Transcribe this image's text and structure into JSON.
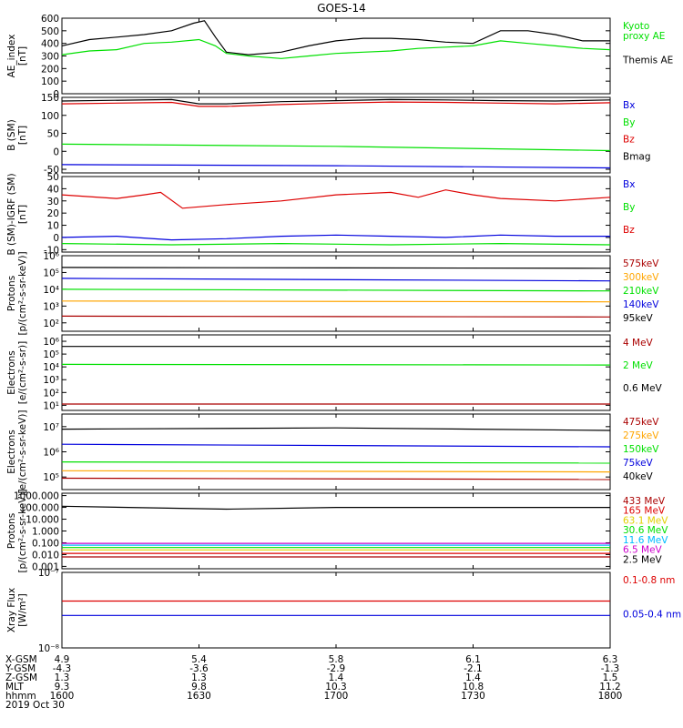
{
  "title": "GOES-14",
  "colors": {
    "black": "#000000",
    "green": "#00e000",
    "blue": "#0000dd",
    "red": "#dd0000",
    "orange": "#ffa500",
    "yellow": "#e0d000",
    "cyan": "#00bbff",
    "purple": "#cc00cc",
    "darkred": "#aa0000"
  },
  "chart_data": [
    {
      "id": "ae",
      "type": "line",
      "ylabel": "AE_index\n[nT]",
      "scale": "linear",
      "ylim": [
        0,
        600
      ],
      "yticks": [
        "0",
        "100",
        "200",
        "300",
        "400",
        "500",
        "600"
      ],
      "ytick_values": [
        0,
        100,
        200,
        300,
        400,
        500,
        600
      ],
      "series": [
        {
          "name": "Kyoto\nproxy AE",
          "color": "#00e000",
          "x": [
            0,
            5,
            10,
            15,
            20,
            25,
            28,
            30,
            34,
            40,
            45,
            50,
            55,
            60,
            65,
            70,
            75,
            80,
            85,
            90,
            95,
            100
          ],
          "y": [
            310,
            340,
            350,
            400,
            410,
            430,
            380,
            320,
            300,
            280,
            300,
            320,
            330,
            340,
            360,
            370,
            380,
            420,
            400,
            380,
            360,
            350
          ]
        },
        {
          "name": "Themis AE",
          "color": "#000000",
          "x": [
            0,
            5,
            10,
            15,
            20,
            24,
            26,
            28,
            30,
            34,
            40,
            45,
            50,
            55,
            60,
            65,
            70,
            75,
            80,
            85,
            90,
            95,
            100
          ],
          "y": [
            380,
            430,
            450,
            470,
            500,
            560,
            580,
            450,
            330,
            310,
            330,
            380,
            420,
            440,
            440,
            430,
            410,
            400,
            500,
            500,
            470,
            420,
            420
          ]
        }
      ]
    },
    {
      "id": "b",
      "type": "line",
      "ylabel": "B (SM)\n[nT]",
      "scale": "linear",
      "ylim": [
        -60,
        150
      ],
      "yticks": [
        "-50",
        "0",
        "50",
        "100",
        "150"
      ],
      "ytick_values": [
        -50,
        0,
        50,
        100,
        150
      ],
      "series": [
        {
          "name": "Bx",
          "color": "#0000dd",
          "x": [
            0,
            50,
            100
          ],
          "y": [
            -37,
            -40,
            -46
          ]
        },
        {
          "name": "By",
          "color": "#00e000",
          "x": [
            0,
            50,
            100
          ],
          "y": [
            20,
            14,
            2
          ]
        },
        {
          "name": "Bz",
          "color": "#dd0000",
          "x": [
            0,
            20,
            25,
            30,
            40,
            50,
            60,
            70,
            80,
            90,
            100
          ],
          "y": [
            132,
            136,
            125,
            125,
            130,
            134,
            137,
            136,
            134,
            132,
            135
          ]
        },
        {
          "name": "Bmag",
          "color": "#000000",
          "x": [
            0,
            20,
            25,
            30,
            40,
            50,
            60,
            70,
            80,
            90,
            100
          ],
          "y": [
            140,
            144,
            132,
            132,
            138,
            141,
            144,
            143,
            141,
            140,
            143
          ]
        }
      ]
    },
    {
      "id": "db",
      "type": "line",
      "ylabel": "B (SM)-IGRF (SM)\n[nT]",
      "scale": "linear",
      "ylim": [
        -12,
        50
      ],
      "yticks": [
        "-10",
        "0",
        "10",
        "20",
        "30",
        "40",
        "50"
      ],
      "ytick_values": [
        -10,
        0,
        10,
        20,
        30,
        40,
        50
      ],
      "series": [
        {
          "name": "Bx",
          "color": "#0000dd",
          "x": [
            0,
            10,
            20,
            30,
            40,
            50,
            60,
            70,
            80,
            90,
            100
          ],
          "y": [
            0,
            1,
            -2,
            -1,
            1,
            2,
            1,
            0,
            2,
            1,
            1
          ]
        },
        {
          "name": "By",
          "color": "#00e000",
          "x": [
            0,
            20,
            40,
            60,
            80,
            100
          ],
          "y": [
            -5,
            -6,
            -5,
            -6,
            -5,
            -6
          ]
        },
        {
          "name": "Bz",
          "color": "#dd0000",
          "x": [
            0,
            10,
            15,
            18,
            22,
            30,
            40,
            50,
            60,
            65,
            70,
            75,
            80,
            90,
            100
          ],
          "y": [
            35,
            32,
            35,
            37,
            24,
            27,
            30,
            35,
            37,
            33,
            39,
            35,
            32,
            30,
            33
          ]
        }
      ]
    },
    {
      "id": "pr",
      "type": "line",
      "ylabel": "Protons\n[p/(cm²-s-sr-keV)]",
      "scale": "log",
      "ylim": [
        1.5,
        6
      ],
      "yticks": [
        "10²",
        "10³",
        "10⁴",
        "10⁵",
        "10⁶"
      ],
      "ytick_values": [
        2,
        3,
        4,
        5,
        6
      ],
      "series": [
        {
          "name": "575keV",
          "color": "#aa0000",
          "x": [
            0,
            100
          ],
          "y": [
            2.4,
            2.35
          ]
        },
        {
          "name": "300keV",
          "color": "#ffa500",
          "x": [
            0,
            100
          ],
          "y": [
            3.3,
            3.25
          ]
        },
        {
          "name": "210keV",
          "color": "#00e000",
          "x": [
            0,
            100
          ],
          "y": [
            4.0,
            3.9
          ]
        },
        {
          "name": "140keV",
          "color": "#0000dd",
          "x": [
            0,
            100
          ],
          "y": [
            4.65,
            4.5
          ]
        },
        {
          "name": "95keV",
          "color": "#000000",
          "x": [
            0,
            100
          ],
          "y": [
            5.3,
            5.25
          ]
        }
      ]
    },
    {
      "id": "el",
      "type": "line",
      "ylabel": "Electrons\n[e/(cm²-s-sr)]",
      "scale": "log",
      "ylim": [
        0.6,
        6.5
      ],
      "yticks": [
        "10¹",
        "10²",
        "10³",
        "10⁴",
        "10⁵",
        "10⁶"
      ],
      "ytick_values": [
        1,
        2,
        3,
        4,
        5,
        6
      ],
      "series": [
        {
          "name": "4 MeV",
          "color": "#aa0000",
          "x": [
            0,
            100
          ],
          "y": [
            1.1,
            1.1
          ]
        },
        {
          "name": "2 MeV",
          "color": "#00e000",
          "x": [
            0,
            100
          ],
          "y": [
            4.2,
            4.15
          ]
        },
        {
          "name": "0.6 MeV",
          "color": "#000000",
          "x": [
            0,
            100
          ],
          "y": [
            5.6,
            5.6
          ]
        }
      ]
    },
    {
      "id": "el2",
      "type": "line",
      "ylabel": "Electrons\n[e/(cm²-s-sr-keV)]",
      "scale": "log",
      "ylim": [
        4.5,
        7.5
      ],
      "yticks": [
        "10⁵",
        "10⁶",
        "10⁷"
      ],
      "ytick_values": [
        5,
        6,
        7
      ],
      "series": [
        {
          "name": "475keV",
          "color": "#aa0000",
          "x": [
            0,
            100
          ],
          "y": [
            4.95,
            4.9
          ]
        },
        {
          "name": "275keV",
          "color": "#ffa500",
          "x": [
            0,
            100
          ],
          "y": [
            5.25,
            5.2
          ]
        },
        {
          "name": "150keV",
          "color": "#00e000",
          "x": [
            0,
            100
          ],
          "y": [
            5.6,
            5.55
          ]
        },
        {
          "name": "75keV",
          "color": "#0000dd",
          "x": [
            0,
            100
          ],
          "y": [
            6.3,
            6.2
          ]
        },
        {
          "name": "40keV",
          "color": "#000000",
          "x": [
            0,
            50,
            100
          ],
          "y": [
            6.9,
            6.95,
            6.85
          ]
        }
      ]
    },
    {
      "id": "pr2",
      "type": "line",
      "ylabel": "Protons\n[p/(cm²-s-sr-keV)]",
      "scale": "log",
      "ylim": [
        -3.2,
        3.2
      ],
      "yticks": [
        "0.001",
        "0.010",
        "0.100",
        "1.000",
        "10.000",
        "100.000",
        "1000.000"
      ],
      "ytick_values": [
        -3,
        -2,
        -1,
        0,
        1,
        2,
        3
      ],
      "series": [
        {
          "name": "433 MeV",
          "color": "#aa0000",
          "x": [
            0,
            100
          ],
          "y": [
            -2.2,
            -2.2
          ]
        },
        {
          "name": "165 MeV",
          "color": "#dd0000",
          "x": [
            0,
            100
          ],
          "y": [
            -1.9,
            -1.9
          ]
        },
        {
          "name": "63.1 MeV",
          "color": "#e0d000",
          "x": [
            0,
            100
          ],
          "y": [
            -1.6,
            -1.6
          ]
        },
        {
          "name": "30.6 MeV",
          "color": "#00e000",
          "x": [
            0,
            100
          ],
          "y": [
            -1.4,
            -1.4
          ]
        },
        {
          "name": "11.6 MeV",
          "color": "#00bbff",
          "x": [
            0,
            100
          ],
          "y": [
            -1.2,
            -1.2
          ]
        },
        {
          "name": "6.5 MeV",
          "color": "#cc00cc",
          "x": [
            0,
            100
          ],
          "y": [
            -1.05,
            -1.05
          ]
        },
        {
          "name": "2.5 MeV",
          "color": "#000000",
          "x": [
            0,
            30,
            50,
            100
          ],
          "y": [
            2.1,
            1.85,
            2.0,
            2.0
          ]
        }
      ]
    },
    {
      "id": "xr",
      "type": "line",
      "ylabel": "Xray Flux\n[W/m²]",
      "scale": "log",
      "ylim": [
        -8,
        -7
      ],
      "yticks": [
        "10⁻⁸",
        "10⁻⁷"
      ],
      "ytick_values": [
        -8,
        -7
      ],
      "series": [
        {
          "name": "0.1-0.8 nm",
          "color": "#dd0000",
          "x": [
            0,
            100
          ],
          "y": [
            -7.38,
            -7.38
          ]
        },
        {
          "name": "0.05-0.4 nm",
          "color": "#0000dd",
          "x": [
            0,
            100
          ],
          "y": [
            -7.57,
            -7.57
          ]
        }
      ]
    }
  ],
  "ephemeris": {
    "labels": [
      "X-GSM",
      "Y-GSM",
      "Z-GSM",
      "MLT",
      "hhmm"
    ],
    "columns": [
      [
        "4.9",
        "-4.3",
        "1.3",
        "9.3",
        "1600"
      ],
      [
        "5.4",
        "-3.6",
        "1.3",
        "9.8",
        "1630"
      ],
      [
        "5.8",
        "-2.9",
        "1.4",
        "10.3",
        "1700"
      ],
      [
        "6.1",
        "-2.1",
        "1.4",
        "10.8",
        "1730"
      ],
      [
        "6.3",
        "-1.3",
        "1.5",
        "11.2",
        "1800"
      ]
    ],
    "date": "2019 Oct 30"
  }
}
